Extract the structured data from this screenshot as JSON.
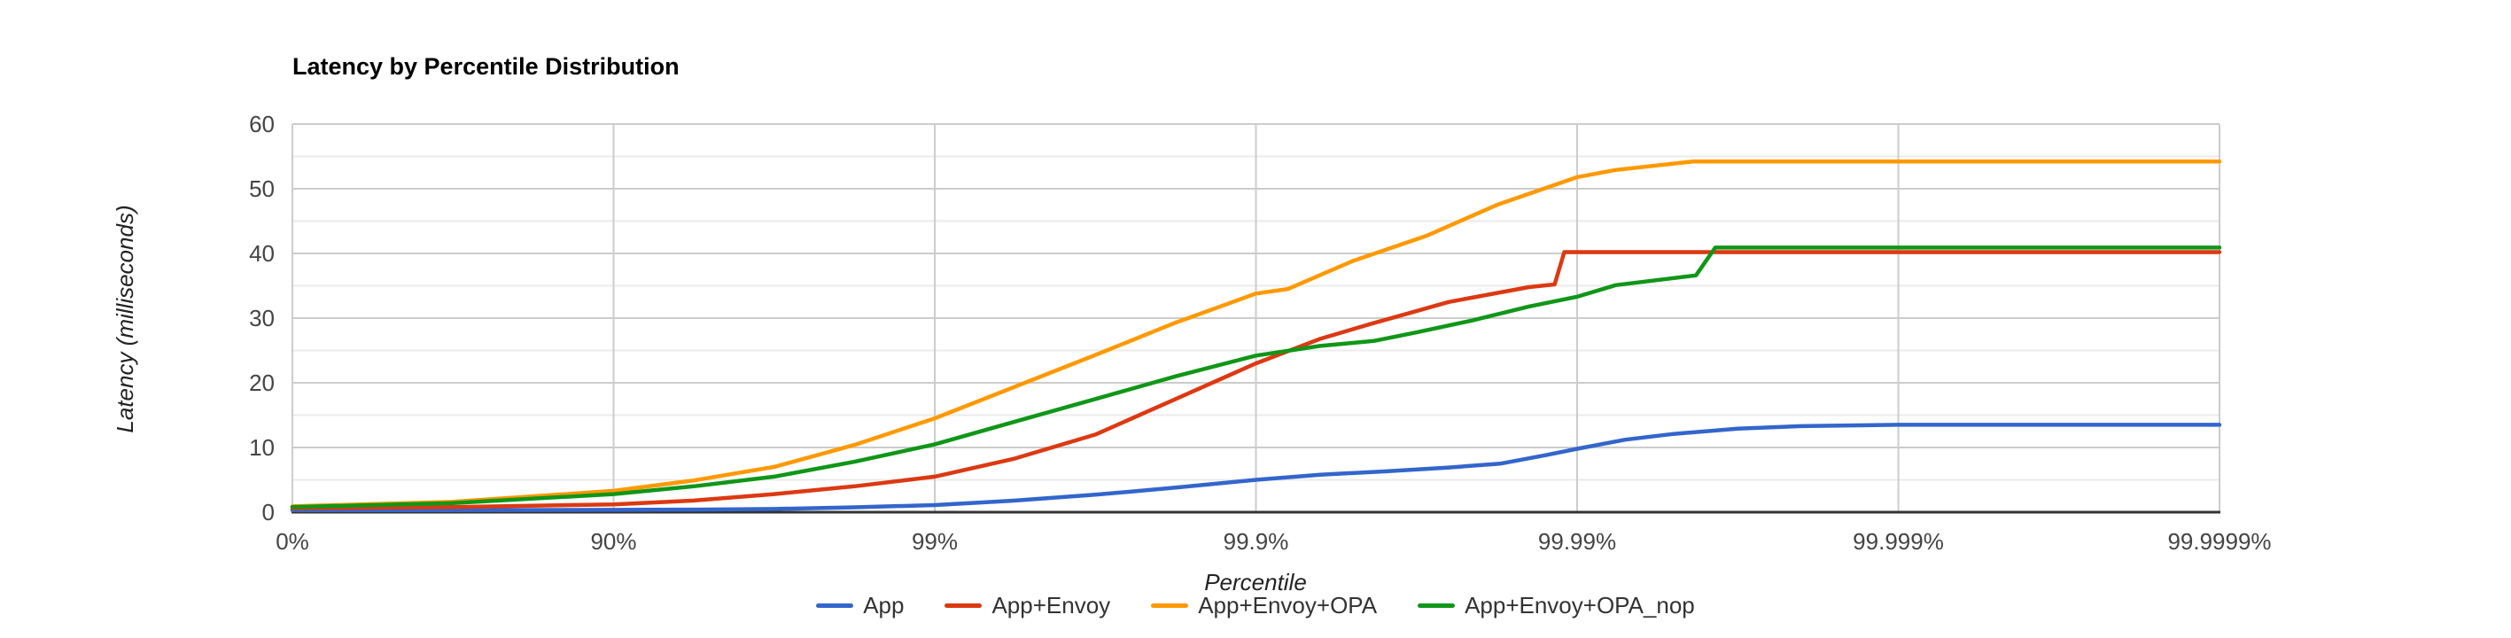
{
  "page": {
    "background": "#ffffff"
  },
  "chart_data": {
    "type": "line",
    "title": "Latency by Percentile Distribution",
    "xlabel": "Percentile",
    "ylabel": "Latency (milliseconds)",
    "x_scale": "log-percentile: position d = log10(1/(1-p)), ticks one decade apart",
    "x_ticks": [
      {
        "label": "0%",
        "decade": 0
      },
      {
        "label": "90%",
        "decade": 1
      },
      {
        "label": "99%",
        "decade": 2
      },
      {
        "label": "99.9%",
        "decade": 3
      },
      {
        "label": "99.99%",
        "decade": 4
      },
      {
        "label": "99.999%",
        "decade": 5
      },
      {
        "label": "99.9999%",
        "decade": 6
      }
    ],
    "y_ticks": [
      0,
      10,
      20,
      30,
      40,
      50,
      60
    ],
    "ylim": [
      0,
      60
    ],
    "xlim_decades": [
      0,
      6
    ],
    "y_major_step": 10,
    "y_minor_step": 5,
    "grid": true,
    "legend_position": "bottom",
    "colors": {
      "grid_major": "#cccccc",
      "grid_minor": "#ebebeb",
      "baseline": "#333333",
      "title_text": "#000000",
      "tick_text": "#444444",
      "axis_title_text": "#222222"
    },
    "series": [
      {
        "name": "App",
        "color": "#3366cc",
        "points": [
          [
            0,
            0.3
          ],
          [
            0.5,
            0.32
          ],
          [
            1,
            0.35
          ],
          [
            1.25,
            0.4
          ],
          [
            1.5,
            0.5
          ],
          [
            1.75,
            0.75
          ],
          [
            2,
            1.1
          ],
          [
            2.25,
            1.8
          ],
          [
            2.5,
            2.7
          ],
          [
            2.75,
            3.8
          ],
          [
            3,
            5.0
          ],
          [
            3.2,
            5.8
          ],
          [
            3.4,
            6.3
          ],
          [
            3.6,
            6.9
          ],
          [
            3.76,
            7.5
          ],
          [
            3.9,
            8.8
          ],
          [
            4,
            9.8
          ],
          [
            4.15,
            11.2
          ],
          [
            4.3,
            12.1
          ],
          [
            4.5,
            12.9
          ],
          [
            4.7,
            13.3
          ],
          [
            5,
            13.5
          ],
          [
            5.5,
            13.5
          ],
          [
            6,
            13.5
          ]
        ]
      },
      {
        "name": "App+Envoy",
        "color": "#dc3912",
        "points": [
          [
            0,
            0.6
          ],
          [
            0.5,
            0.8
          ],
          [
            1,
            1.2
          ],
          [
            1.25,
            1.8
          ],
          [
            1.5,
            2.8
          ],
          [
            1.75,
            4.0
          ],
          [
            2,
            5.5
          ],
          [
            2.25,
            8.3
          ],
          [
            2.5,
            12.0
          ],
          [
            2.75,
            17.5
          ],
          [
            3,
            23.0
          ],
          [
            3.2,
            26.8
          ],
          [
            3.35,
            29.0
          ],
          [
            3.6,
            32.5
          ],
          [
            3.85,
            34.8
          ],
          [
            3.93,
            35.2
          ],
          [
            3.96,
            40.2
          ],
          [
            4,
            40.2
          ],
          [
            5,
            40.2
          ],
          [
            6,
            40.2
          ]
        ]
      },
      {
        "name": "App+Envoy+OPA",
        "color": "#ff9900",
        "points": [
          [
            0,
            0.9
          ],
          [
            0.5,
            1.6
          ],
          [
            1,
            3.3
          ],
          [
            1.25,
            4.9
          ],
          [
            1.5,
            7.0
          ],
          [
            1.75,
            10.4
          ],
          [
            2,
            14.5
          ],
          [
            2.25,
            19.4
          ],
          [
            2.5,
            24.3
          ],
          [
            2.75,
            29.3
          ],
          [
            3,
            33.8
          ],
          [
            3.1,
            34.5
          ],
          [
            3.3,
            38.8
          ],
          [
            3.53,
            42.7
          ],
          [
            3.75,
            47.5
          ],
          [
            4,
            51.8
          ],
          [
            4.12,
            52.9
          ],
          [
            4.36,
            54.2
          ],
          [
            5,
            54.2
          ],
          [
            6,
            54.2
          ]
        ]
      },
      {
        "name": "App+Envoy+OPA_nop",
        "color": "#109618",
        "points": [
          [
            0,
            0.8
          ],
          [
            0.5,
            1.4
          ],
          [
            1,
            2.8
          ],
          [
            1.25,
            4.0
          ],
          [
            1.5,
            5.5
          ],
          [
            1.75,
            7.8
          ],
          [
            2,
            10.5
          ],
          [
            2.25,
            14.0
          ],
          [
            2.5,
            17.5
          ],
          [
            2.75,
            21.0
          ],
          [
            3,
            24.2
          ],
          [
            3.2,
            25.7
          ],
          [
            3.37,
            26.5
          ],
          [
            3.5,
            27.8
          ],
          [
            3.67,
            29.6
          ],
          [
            3.85,
            31.8
          ],
          [
            4,
            33.3
          ],
          [
            4.12,
            35.1
          ],
          [
            4.37,
            36.6
          ],
          [
            4.43,
            40.9
          ],
          [
            5,
            40.9
          ],
          [
            6,
            40.9
          ]
        ]
      }
    ]
  }
}
